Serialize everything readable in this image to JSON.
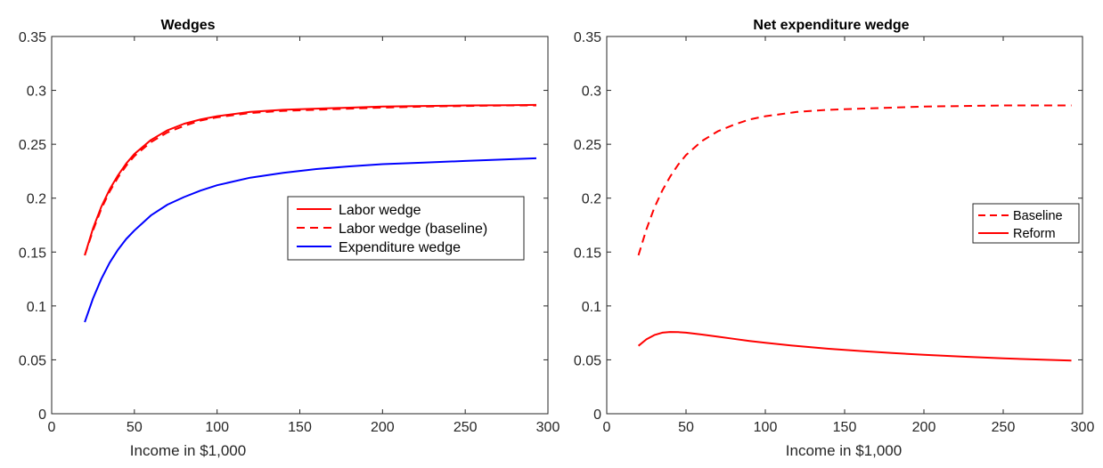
{
  "colors": {
    "red": "#ff0000",
    "blue": "#0000ff",
    "axis": "#262626"
  },
  "chart_data": [
    {
      "type": "line",
      "title": "Wedges",
      "xlabel": "Income in $1,000",
      "ylabel": "",
      "xlim": [
        0,
        300
      ],
      "ylim": [
        0,
        0.35
      ],
      "xticks": [
        "0",
        "50",
        "100",
        "150",
        "200",
        "250",
        "300"
      ],
      "yticks": [
        "0",
        "0.05",
        "0.1",
        "0.15",
        "0.2",
        "0.25",
        "0.3",
        "0.35"
      ],
      "grid": false,
      "legend_position": "center-right",
      "series": [
        {
          "name": "Labor wedge",
          "color": "#ff0000",
          "style": "solid",
          "x": [
            20,
            25,
            30,
            35,
            40,
            45,
            50,
            60,
            70,
            80,
            90,
            100,
            120,
            140,
            160,
            180,
            200,
            225,
            250,
            275,
            293
          ],
          "y": [
            0.147,
            0.172,
            0.192,
            0.208,
            0.221,
            0.232,
            0.241,
            0.254,
            0.263,
            0.269,
            0.273,
            0.276,
            0.28,
            0.282,
            0.283,
            0.284,
            0.285,
            0.2855,
            0.286,
            0.2862,
            0.2865
          ]
        },
        {
          "name": "Labor wedge (baseline)",
          "color": "#ff0000",
          "style": "dashed",
          "x": [
            20,
            25,
            30,
            35,
            40,
            45,
            50,
            60,
            70,
            80,
            90,
            100,
            120,
            140,
            160,
            180,
            200,
            225,
            250,
            275,
            293
          ],
          "y": [
            0.147,
            0.17,
            0.19,
            0.206,
            0.219,
            0.23,
            0.239,
            0.252,
            0.261,
            0.267,
            0.272,
            0.275,
            0.279,
            0.281,
            0.282,
            0.283,
            0.284,
            0.285,
            0.2855,
            0.286,
            0.286
          ]
        },
        {
          "name": "Expenditure wedge",
          "color": "#0000ff",
          "style": "solid",
          "x": [
            20,
            25,
            30,
            35,
            40,
            45,
            50,
            60,
            70,
            80,
            90,
            100,
            120,
            140,
            160,
            180,
            200,
            225,
            250,
            275,
            293
          ],
          "y": [
            0.085,
            0.107,
            0.125,
            0.14,
            0.152,
            0.162,
            0.17,
            0.184,
            0.194,
            0.201,
            0.207,
            0.212,
            0.219,
            0.2235,
            0.227,
            0.2295,
            0.2315,
            0.233,
            0.2345,
            0.236,
            0.237
          ]
        }
      ]
    },
    {
      "type": "line",
      "title": "Net expenditure wedge",
      "xlabel": "Income in $1,000",
      "ylabel": "",
      "xlim": [
        0,
        300
      ],
      "ylim": [
        0,
        0.35
      ],
      "xticks": [
        "0",
        "50",
        "100",
        "150",
        "200",
        "250",
        "300"
      ],
      "yticks": [
        "0",
        "0.05",
        "0.1",
        "0.15",
        "0.2",
        "0.25",
        "0.3",
        "0.35"
      ],
      "grid": false,
      "legend_position": "center-right",
      "series": [
        {
          "name": "Baseline",
          "color": "#ff0000",
          "style": "dashed",
          "x": [
            20,
            25,
            30,
            35,
            40,
            45,
            50,
            60,
            70,
            80,
            90,
            100,
            120,
            140,
            160,
            180,
            200,
            225,
            250,
            275,
            293
          ],
          "y": [
            0.147,
            0.171,
            0.191,
            0.207,
            0.22,
            0.231,
            0.24,
            0.253,
            0.262,
            0.268,
            0.273,
            0.276,
            0.28,
            0.282,
            0.283,
            0.284,
            0.285,
            0.2855,
            0.286,
            0.286,
            0.286
          ]
        },
        {
          "name": "Reform",
          "color": "#ff0000",
          "style": "solid",
          "x": [
            20,
            25,
            30,
            35,
            40,
            45,
            50,
            60,
            70,
            80,
            90,
            100,
            120,
            140,
            160,
            180,
            200,
            225,
            250,
            275,
            293
          ],
          "y": [
            0.063,
            0.069,
            0.073,
            0.0752,
            0.0758,
            0.0757,
            0.0752,
            0.0735,
            0.0715,
            0.0695,
            0.0675,
            0.0658,
            0.0628,
            0.0603,
            0.0582,
            0.0563,
            0.0547,
            0.0529,
            0.0514,
            0.0501,
            0.0493
          ]
        }
      ]
    }
  ]
}
